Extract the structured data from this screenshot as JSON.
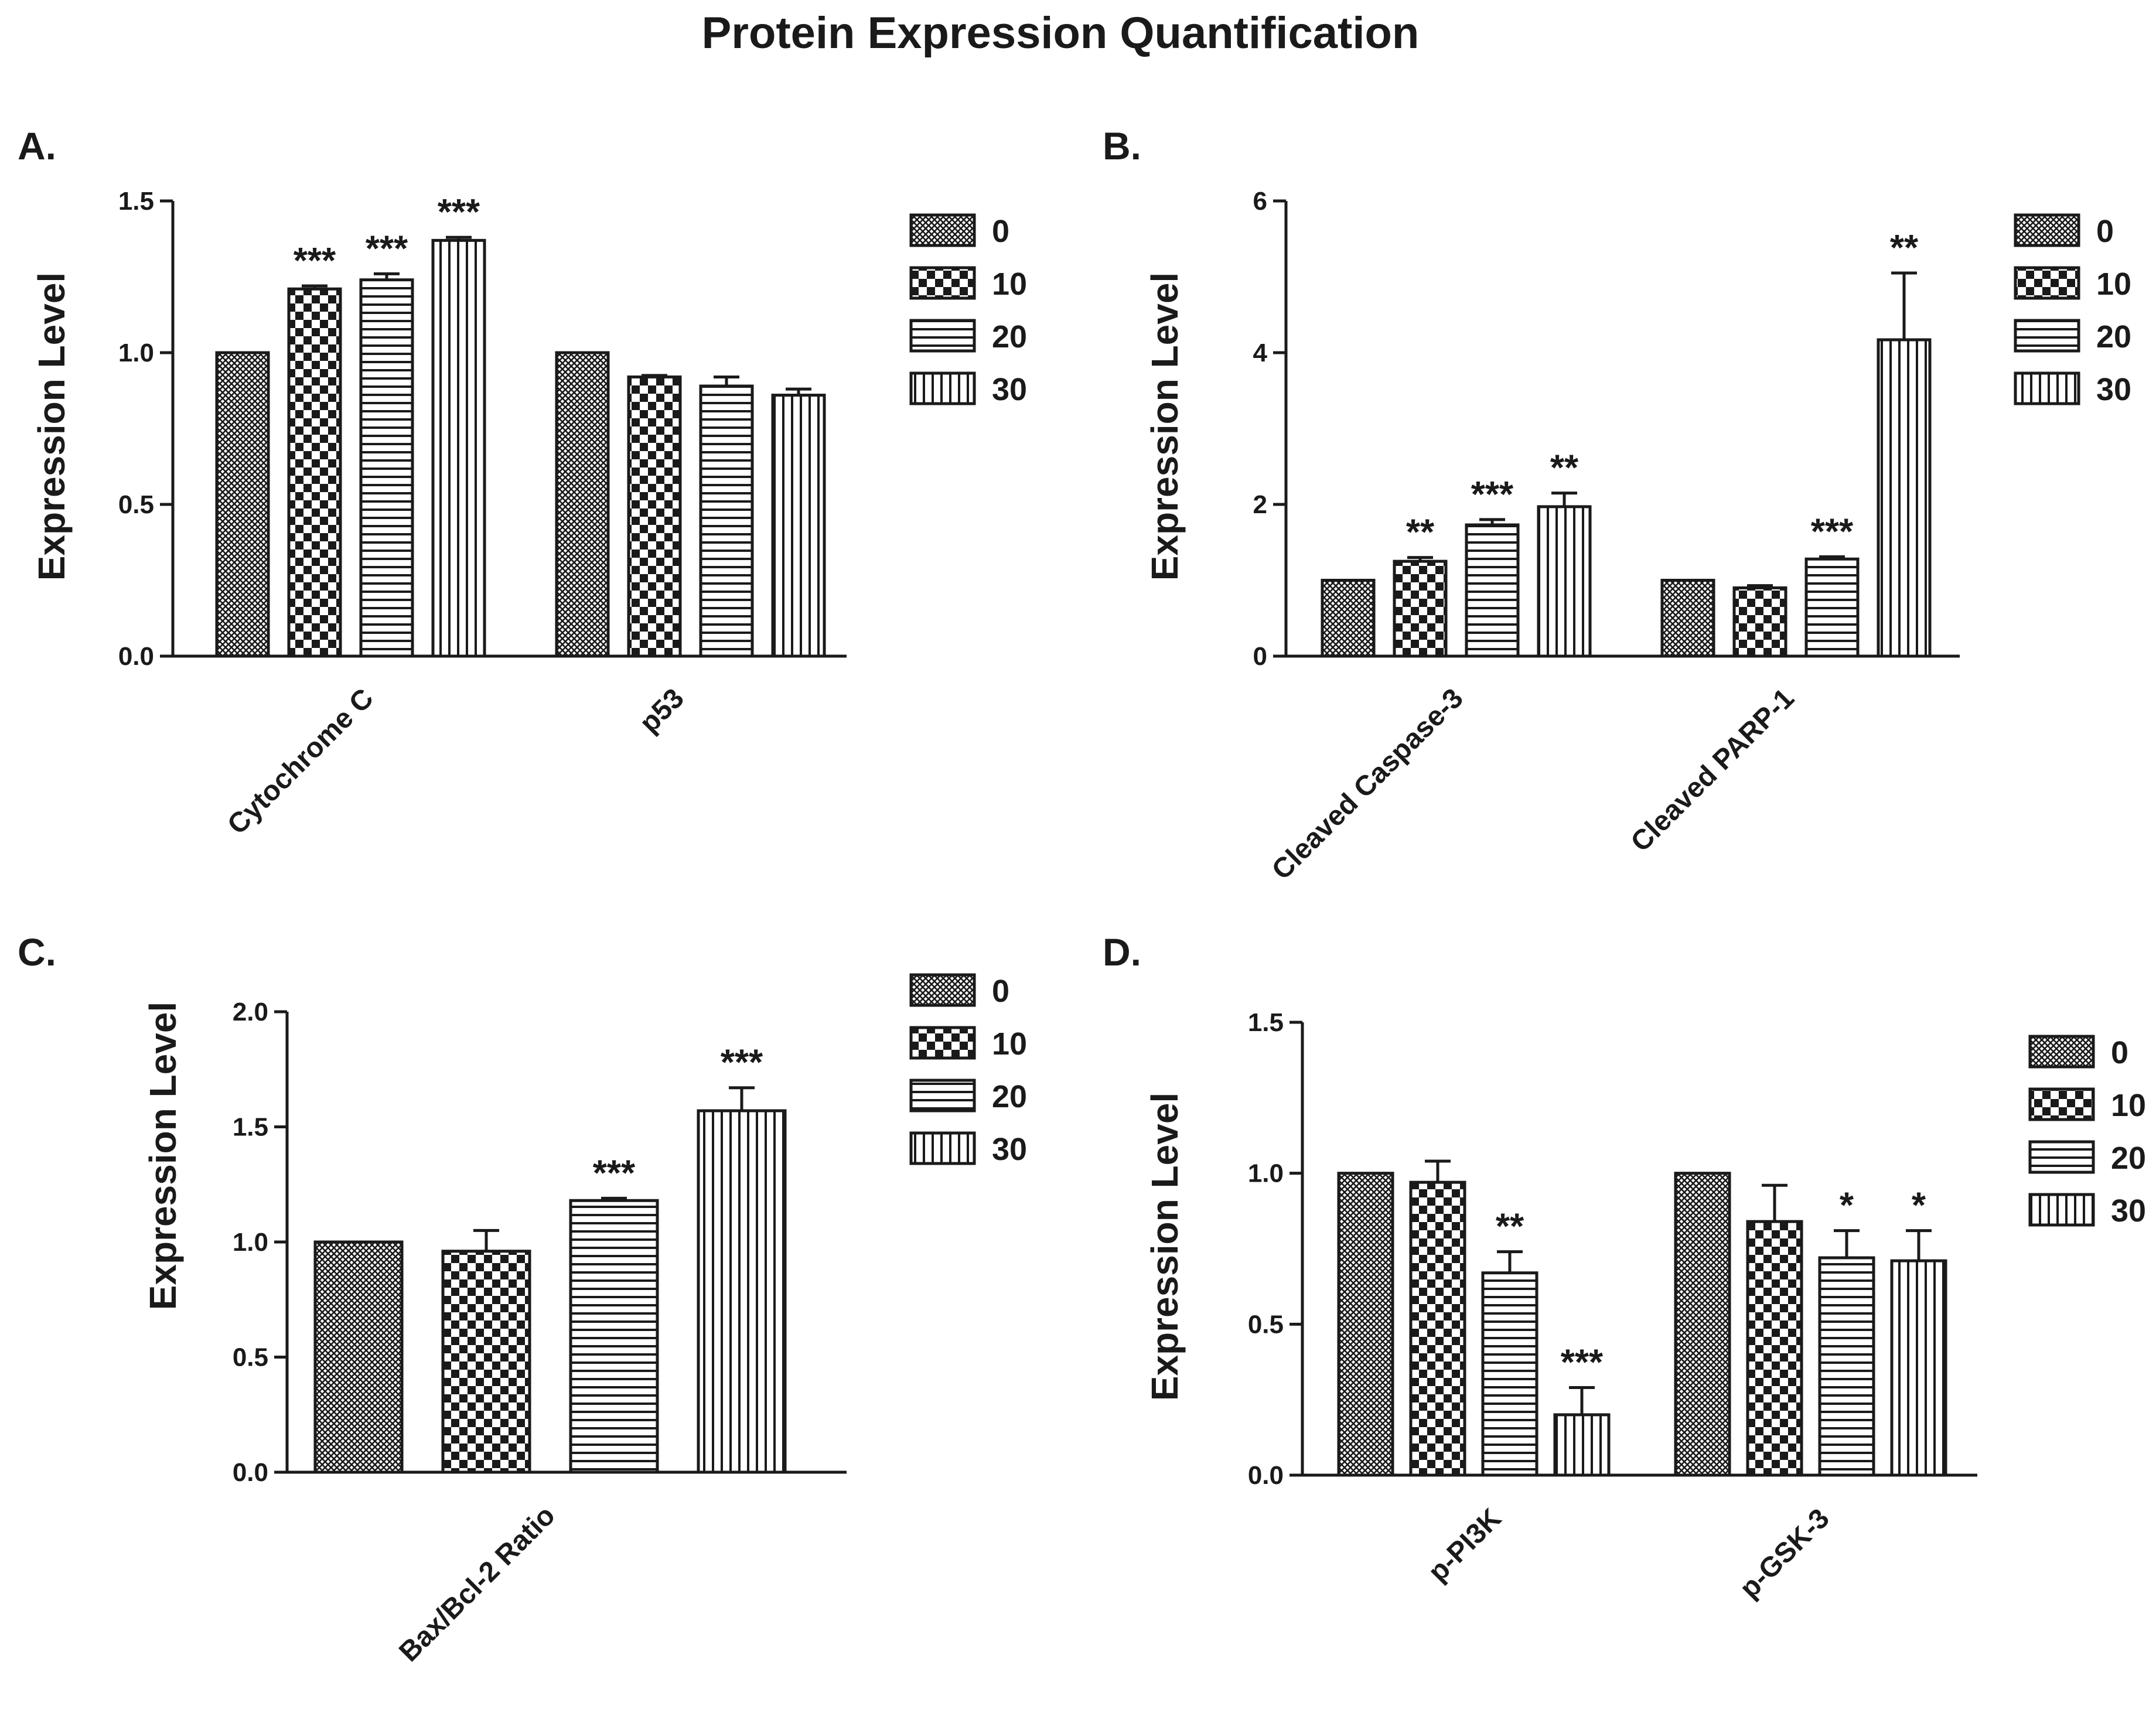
{
  "figure": {
    "title": "Protein Expression Quantification"
  },
  "legend": {
    "entries": [
      "0",
      "10",
      "20",
      "30"
    ],
    "patterns": [
      "fine-crosshatch",
      "checkerboard",
      "horizontal-stripes",
      "vertical-stripes"
    ]
  },
  "colors": {
    "ink": "#1a1a1a",
    "background": "#ffffff"
  },
  "chart_data": [
    {
      "panel": "A.",
      "type": "bar",
      "ylabel": "Expression Level",
      "ylim": [
        0,
        1.5
      ],
      "yticks": [
        "0.0",
        "0.5",
        "1.0",
        "1.5"
      ],
      "categories": [
        "Cytochrome C",
        "p53"
      ],
      "legend_position": "right",
      "series": [
        {
          "name": "0",
          "values": [
            1.0,
            1.0
          ],
          "errors": [
            0,
            0
          ],
          "sig": [
            "",
            ""
          ]
        },
        {
          "name": "10",
          "values": [
            1.21,
            0.92
          ],
          "errors": [
            0.01,
            0.005
          ],
          "sig": [
            "***",
            ""
          ]
        },
        {
          "name": "20",
          "values": [
            1.24,
            0.89
          ],
          "errors": [
            0.02,
            0.03
          ],
          "sig": [
            "***",
            ""
          ]
        },
        {
          "name": "30",
          "values": [
            1.37,
            0.86
          ],
          "errors": [
            0.01,
            0.02
          ],
          "sig": [
            "***",
            ""
          ]
        }
      ]
    },
    {
      "panel": "B.",
      "type": "bar",
      "ylabel": "Expression Level",
      "ylim": [
        0,
        6
      ],
      "yticks": [
        "0",
        "2",
        "4",
        "6"
      ],
      "categories": [
        "Cleaved Caspase-3",
        "Cleaved PARP-1"
      ],
      "legend_position": "right",
      "series": [
        {
          "name": "0",
          "values": [
            1.0,
            1.0
          ],
          "errors": [
            0,
            0
          ],
          "sig": [
            "",
            ""
          ]
        },
        {
          "name": "10",
          "values": [
            1.25,
            0.9
          ],
          "errors": [
            0.05,
            0.03
          ],
          "sig": [
            "**",
            ""
          ]
        },
        {
          "name": "20",
          "values": [
            1.73,
            1.28
          ],
          "errors": [
            0.07,
            0.03
          ],
          "sig": [
            "***",
            "***"
          ]
        },
        {
          "name": "30",
          "values": [
            1.97,
            4.17
          ],
          "errors": [
            0.18,
            0.88
          ],
          "sig": [
            "**",
            "**"
          ]
        }
      ]
    },
    {
      "panel": "C.",
      "type": "bar",
      "ylabel": "Expression Level",
      "ylim": [
        0,
        2.0
      ],
      "yticks": [
        "0.0",
        "0.5",
        "1.0",
        "1.5",
        "2.0"
      ],
      "categories": [
        "Bax/Bcl-2 Ratio"
      ],
      "legend_position": "right",
      "series": [
        {
          "name": "0",
          "values": [
            1.0
          ],
          "errors": [
            0
          ],
          "sig": [
            ""
          ]
        },
        {
          "name": "10",
          "values": [
            0.96
          ],
          "errors": [
            0.09
          ],
          "sig": [
            ""
          ]
        },
        {
          "name": "20",
          "values": [
            1.18
          ],
          "errors": [
            0.01
          ],
          "sig": [
            "***"
          ]
        },
        {
          "name": "30",
          "values": [
            1.57
          ],
          "errors": [
            0.1
          ],
          "sig": [
            "***"
          ]
        }
      ]
    },
    {
      "panel": "D.",
      "type": "bar",
      "ylabel": "Expression Level",
      "ylim": [
        0,
        1.5
      ],
      "yticks": [
        "0.0",
        "0.5",
        "1.0",
        "1.5"
      ],
      "categories": [
        "p-PI3K",
        "p-GSK-3"
      ],
      "legend_position": "right",
      "series": [
        {
          "name": "0",
          "values": [
            1.0,
            1.0
          ],
          "errors": [
            0,
            0
          ],
          "sig": [
            "",
            ""
          ]
        },
        {
          "name": "10",
          "values": [
            0.97,
            0.84
          ],
          "errors": [
            0.07,
            0.12
          ],
          "sig": [
            "",
            ""
          ]
        },
        {
          "name": "20",
          "values": [
            0.67,
            0.72
          ],
          "errors": [
            0.07,
            0.09
          ],
          "sig": [
            "**",
            "*"
          ]
        },
        {
          "name": "30",
          "values": [
            0.2,
            0.71
          ],
          "errors": [
            0.09,
            0.1
          ],
          "sig": [
            "***",
            "*"
          ]
        }
      ]
    }
  ]
}
